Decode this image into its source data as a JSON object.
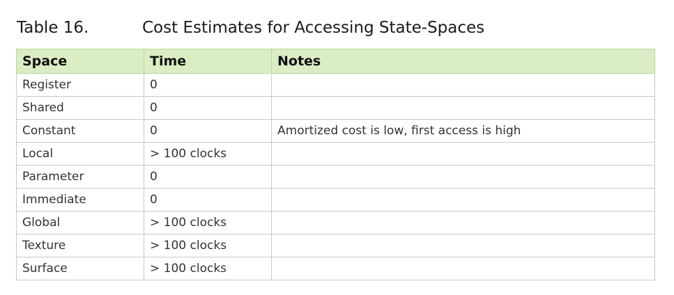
{
  "caption": {
    "label": "Table 16.",
    "title": "Cost Estimates for Accessing State-Spaces"
  },
  "table": {
    "headers": [
      "Space",
      "Time",
      "Notes"
    ],
    "rows": [
      [
        "Register",
        "0",
        ""
      ],
      [
        "Shared",
        "0",
        ""
      ],
      [
        "Constant",
        "0",
        "Amortized cost is low, first access is high"
      ],
      [
        "Local",
        "> 100 clocks",
        ""
      ],
      [
        "Parameter",
        "0",
        ""
      ],
      [
        "Immediate",
        "0",
        ""
      ],
      [
        "Global",
        "> 100 clocks",
        ""
      ],
      [
        "Texture",
        "> 100 clocks",
        ""
      ],
      [
        "Surface",
        "> 100 clocks",
        ""
      ]
    ]
  },
  "colors": {
    "header_background": "#dbedc4",
    "border": "#c8c8c8"
  }
}
